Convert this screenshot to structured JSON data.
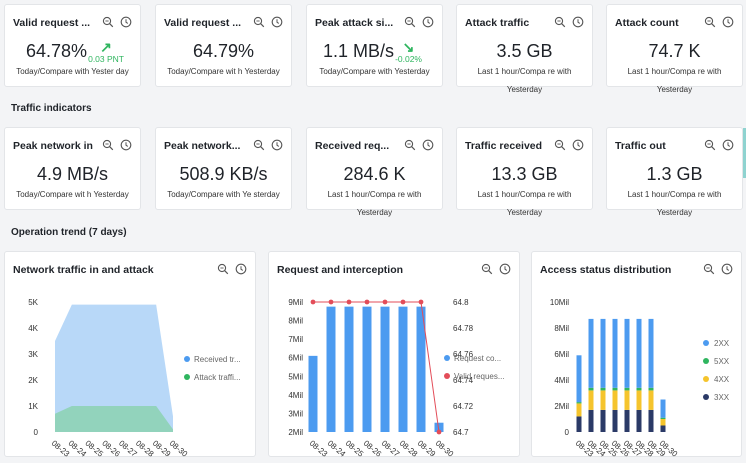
{
  "kpi_row1": [
    {
      "title": "Valid request ...",
      "value": "64.78%",
      "sub": "Today/Compare with Yester day",
      "trend": {
        "dir": "up",
        "text": "0.03 PNT"
      }
    },
    {
      "title": "Valid request ...",
      "value": "64.79%",
      "sub": "Today/Compare wit h Yesterday"
    },
    {
      "title": "Peak attack si...",
      "value": "1.1 MB/s",
      "sub": "Today/Compare with Yesterday",
      "trend": {
        "dir": "down",
        "text": "-0.02%"
      }
    },
    {
      "title": "Attack traffic",
      "value": "3.5 GB",
      "sub": "Last 1 hour/Compa re with Yesterday"
    },
    {
      "title": "Attack count",
      "value": "74.7 K",
      "sub": "Last 1 hour/Compa re with Yesterday"
    }
  ],
  "section_traffic": "Traffic indicators",
  "kpi_row2": [
    {
      "title": "Peak network in",
      "value": "4.9 MB/s",
      "sub": "Today/Compare wit h Yesterday"
    },
    {
      "title": "Peak network...",
      "value": "508.9 KB/s",
      "sub": "Today/Compare with Ye sterday"
    },
    {
      "title": "Received req...",
      "value": "284.6 K",
      "sub": "Last 1 hour/Compa re with Yesterday"
    },
    {
      "title": "Traffic received",
      "value": "13.3 GB",
      "sub": "Last 1 hour/Compa re with Yesterday"
    },
    {
      "title": "Traffic out",
      "value": "1.3 GB",
      "sub": "Last 1 hour/Compa re with Yesterday"
    }
  ],
  "section_trend": "Operation trend (7 days)",
  "icons": {
    "zoom": "zoom-icon",
    "clock": "clock-icon"
  },
  "colors": {
    "green": "#2fb55f",
    "blue": "#4c9bf0",
    "light_blue": "#b4d6f8",
    "teal": "#8fd3b8",
    "red": "#e34d59",
    "yellow": "#f5c42c",
    "navy": "#2b3a67"
  },
  "charts": {
    "network": {
      "title": "Network traffic in and attack"
    },
    "request": {
      "title": "Request and interception"
    },
    "access": {
      "title": "Access status distribution"
    }
  },
  "chart_data": [
    {
      "type": "area",
      "title": "Network traffic in and attack",
      "categories": [
        "08-23",
        "08-24",
        "08-25",
        "08-26",
        "08-27",
        "08-28",
        "08-29",
        "08-30"
      ],
      "y_ticks": [
        "0",
        "1K",
        "2K",
        "3K",
        "4K",
        "5K"
      ],
      "ylim": [
        0,
        5000
      ],
      "series": [
        {
          "name": "Received tr...",
          "values": [
            3500,
            4900,
            4900,
            4900,
            4900,
            4900,
            4900,
            600
          ]
        },
        {
          "name": "Attack traffi...",
          "values": [
            700,
            1000,
            1000,
            1000,
            1000,
            1000,
            1000,
            100
          ]
        }
      ],
      "legend": "right"
    },
    {
      "type": "bar",
      "title": "Request and interception",
      "categories": [
        "08-23",
        "08-24",
        "08-25",
        "08-26",
        "08-27",
        "08-28",
        "08-29",
        "08-30"
      ],
      "y_ticks": [
        "2Mil",
        "3Mil",
        "4Mil",
        "5Mil",
        "6Mil",
        "7Mil",
        "8Mil",
        "9Mil"
      ],
      "y2_ticks": [
        "64.7",
        "64.72",
        "64.74",
        "64.76",
        "64.78",
        "64.8"
      ],
      "ylim": [
        2000000,
        9000000
      ],
      "y2lim": [
        64.7,
        64.8
      ],
      "series": [
        {
          "name": "Request co...",
          "axis": "left",
          "values": [
            6100000,
            8750000,
            8750000,
            8750000,
            8750000,
            8750000,
            8750000,
            2500000
          ]
        },
        {
          "name": "Valid reques...",
          "axis": "right",
          "values": [
            64.8,
            64.8,
            64.8,
            64.8,
            64.8,
            64.8,
            64.8,
            64.7
          ]
        }
      ],
      "legend": "right"
    },
    {
      "type": "bar",
      "stacked": true,
      "title": "Access status distribution",
      "categories": [
        "08-23",
        "08-24",
        "08-25",
        "08-26",
        "08-27",
        "08-28",
        "08-29",
        "08-30"
      ],
      "y_ticks": [
        "0",
        "2Mil",
        "4Mil",
        "6Mil",
        "8Mil",
        "10Mil"
      ],
      "ylim": [
        0,
        10000000
      ],
      "series": [
        {
          "name": "3XX",
          "values": [
            1200000,
            1700000,
            1700000,
            1700000,
            1700000,
            1700000,
            1700000,
            500000
          ]
        },
        {
          "name": "4XX",
          "values": [
            1000000,
            1500000,
            1500000,
            1500000,
            1500000,
            1500000,
            1500000,
            500000
          ]
        },
        {
          "name": "5XX",
          "values": [
            100000,
            200000,
            200000,
            200000,
            200000,
            200000,
            200000,
            100000
          ]
        },
        {
          "name": "2XX",
          "values": [
            3600000,
            5300000,
            5300000,
            5300000,
            5300000,
            5300000,
            5300000,
            1400000
          ]
        }
      ],
      "legend": "right"
    }
  ]
}
